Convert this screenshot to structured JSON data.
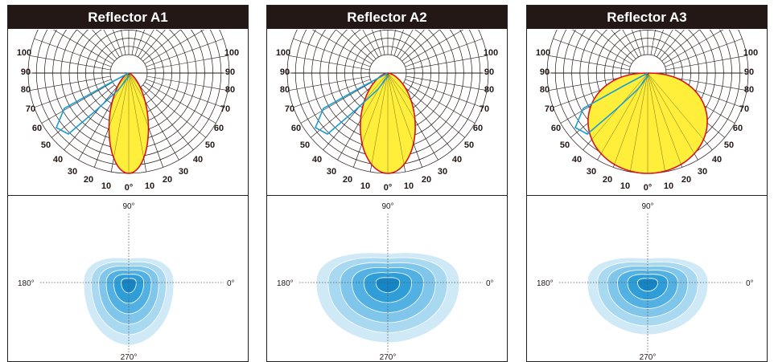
{
  "panels": [
    {
      "title": "Reflector A1",
      "beam": {
        "spread": 0.25,
        "power": 2.4
      },
      "iso": {
        "w": 112,
        "hUp": 30,
        "hDown": 78
      }
    },
    {
      "title": "Reflector A2",
      "beam": {
        "spread": 0.3,
        "power": 2.0
      },
      "iso": {
        "w": 178,
        "hUp": 36,
        "hDown": 75
      }
    },
    {
      "title": "Reflector A3",
      "beam": {
        "spread": 0.5,
        "power": 1.6
      },
      "iso": {
        "w": 150,
        "hUp": 30,
        "hDown": 65
      }
    }
  ],
  "polar": {
    "left_labels": [
      "100",
      "90",
      "80",
      "70",
      "60",
      "50",
      "40",
      "30",
      "20",
      "10"
    ],
    "right_labels": [
      "100",
      "90",
      "80",
      "70",
      "60",
      "50",
      "40",
      "30",
      "20",
      "10"
    ],
    "zero_label": "0°"
  },
  "iso_axes": {
    "top": "90°",
    "bottom": "270°",
    "left": "180°",
    "right": "0°"
  },
  "colors": {
    "header_bg": "#231815",
    "beam_fill": "#ffef3b",
    "beam_stroke": "#d7141d",
    "curve": "#1a9dd0",
    "iso_levels": [
      "#cfe9f7",
      "#a9d8f1",
      "#7fc6ea",
      "#52b1e2",
      "#2f9ed8",
      "#1585c6"
    ]
  }
}
